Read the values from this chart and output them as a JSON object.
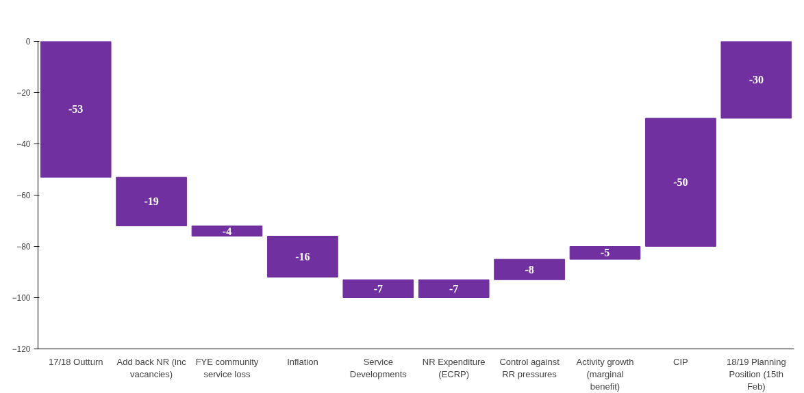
{
  "chart_data": {
    "type": "bar",
    "categories": [
      "17/18 Outturn",
      "Add back NR (inc vacancies)",
      "FYE community service loss",
      "Inflation",
      "Service Developments",
      "NR Expenditure (ECRP)",
      "Control against RR pressures",
      "Activity growth (marginal benefit)",
      "CIP",
      "18/19 Planning Position (15th Feb)"
    ],
    "values": [
      -53,
      -19,
      -4,
      -16,
      -7,
      -7,
      -8,
      -5,
      -50,
      -30
    ],
    "base": [
      0,
      -53,
      -72,
      -76,
      -93,
      -93,
      -85,
      -80,
      -30,
      0
    ],
    "color": "#7030a0",
    "data_labels": true,
    "grid": false,
    "ylim": [
      -120,
      0
    ],
    "yticks": [
      -120,
      -100,
      -80,
      -60,
      -40,
      -20,
      0
    ]
  }
}
